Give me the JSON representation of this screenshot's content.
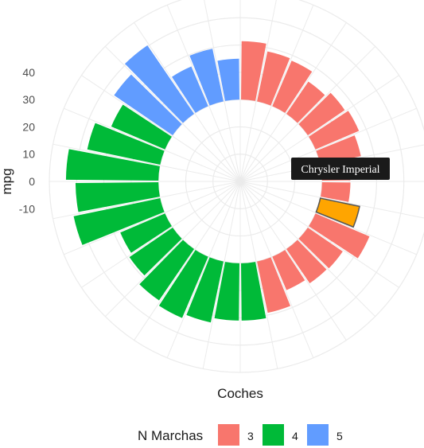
{
  "chart_data": {
    "type": "bar",
    "coord": "polar",
    "xlabel": "Coches",
    "ylabel": "mpg",
    "ylim": [
      -30,
      40
    ],
    "y_ticks": [
      40,
      30,
      20,
      10,
      0,
      -10
    ],
    "grid": true,
    "legend": {
      "title": "N Marchas",
      "position": "bottom",
      "entries": [
        {
          "label": "3",
          "color": "#F8766D"
        },
        {
          "label": "4",
          "color": "#00BA38"
        },
        {
          "label": "5",
          "color": "#619CFF"
        }
      ]
    },
    "series": [
      {
        "name": "3",
        "color": "#F8766D",
        "values": [
          21.4,
          18.7,
          18.1,
          14.3,
          16.4,
          17.3,
          15.2,
          10.4,
          10.4,
          14.7,
          21.5,
          15.5,
          15.2,
          13.3,
          19.2
        ]
      },
      {
        "name": "4",
        "color": "#00BA38",
        "values": [
          21.0,
          21.0,
          22.8,
          24.4,
          22.8,
          19.2,
          17.8,
          32.4,
          30.4,
          33.9,
          27.3,
          21.4
        ]
      },
      {
        "name": "5",
        "color": "#619CFF",
        "values": [
          26.0,
          30.4,
          15.8,
          19.7,
          15.0
        ]
      }
    ],
    "highlight": {
      "label": "Chrysler Imperial",
      "value": 14.7,
      "color": "#FFA500"
    }
  }
}
